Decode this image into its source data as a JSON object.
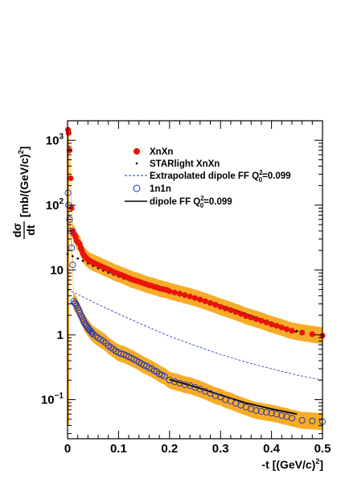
{
  "chart_data": {
    "type": "scatter",
    "x_axis": {
      "label_main": "-t [(GeV/c)",
      "label_sup": "2",
      "label_end": "]",
      "range": [
        0,
        0.5
      ],
      "ticks": [
        {
          "v": 0,
          "label": "0"
        },
        {
          "v": 0.1,
          "label": "0.1"
        },
        {
          "v": 0.2,
          "label": "0.2"
        },
        {
          "v": 0.3,
          "label": "0.3"
        },
        {
          "v": 0.4,
          "label": "0.4"
        },
        {
          "v": 0.5,
          "label": "0.5"
        }
      ]
    },
    "y_axis": {
      "scale": "log",
      "label_num": "dσ",
      "label_den": "dt",
      "label_units": "[mb/(GeV/c)",
      "label_units_sup": "2",
      "label_units_end": "]",
      "range": [
        0.025,
        2000
      ],
      "ticks": [
        {
          "v": 0.1,
          "base": "10",
          "exp": "−1"
        },
        {
          "v": 1,
          "label": "1"
        },
        {
          "v": 10,
          "label": "10"
        },
        {
          "v": 100,
          "base": "10",
          "exp": "2"
        },
        {
          "v": 1000,
          "base": "10",
          "exp": "3"
        }
      ]
    },
    "legend": {
      "placement": "top-right",
      "entries": [
        {
          "key": "xnxn",
          "text": "XnXn"
        },
        {
          "key": "starlight",
          "text": "STARlight XnXn"
        },
        {
          "key": "dipole_extrap",
          "text": "Extrapolated dipole FF Q",
          "sup": "2",
          "sub": "0",
          "tail": "=0.099"
        },
        {
          "key": "n1n1",
          "text": "1n1n"
        },
        {
          "key": "dipole",
          "text": "dipole FF  Q",
          "sup": "2",
          "sub": "0",
          "tail": "=0.099"
        }
      ]
    },
    "colors": {
      "xnxn": "#e8140c",
      "n1n1": "#1c2fb6",
      "band": "#f7a81c",
      "starlight": "#000000",
      "dipole": "#000000",
      "dipole_extrap": "#1c2fb6"
    },
    "series": [
      {
        "name": "XnXn",
        "points": [
          [
            0.001,
            1450
          ],
          [
            0.002,
            1300
          ],
          [
            0.004,
            700
          ],
          [
            0.006,
            260
          ],
          [
            0.008,
            90
          ],
          [
            0.01,
            40
          ],
          [
            0.012,
            36
          ],
          [
            0.014,
            35
          ],
          [
            0.016,
            32
          ],
          [
            0.018,
            28
          ],
          [
            0.02,
            27
          ],
          [
            0.022,
            26
          ],
          [
            0.024,
            25
          ],
          [
            0.026,
            22
          ],
          [
            0.028,
            20
          ],
          [
            0.03,
            18
          ],
          [
            0.032,
            17
          ],
          [
            0.034,
            16
          ],
          [
            0.036,
            15.5
          ],
          [
            0.038,
            15
          ],
          [
            0.04,
            14.5
          ],
          [
            0.042,
            14
          ],
          [
            0.044,
            13.8
          ],
          [
            0.046,
            13.5
          ],
          [
            0.048,
            13.2
          ],
          [
            0.05,
            13
          ],
          [
            0.055,
            12.5
          ],
          [
            0.06,
            12
          ],
          [
            0.065,
            11.5
          ],
          [
            0.07,
            11
          ],
          [
            0.075,
            10.6
          ],
          [
            0.08,
            10.2
          ],
          [
            0.085,
            9.8
          ],
          [
            0.09,
            9.3
          ],
          [
            0.095,
            9
          ],
          [
            0.1,
            8.7
          ],
          [
            0.105,
            8.4
          ],
          [
            0.11,
            8.1
          ],
          [
            0.115,
            7.8
          ],
          [
            0.12,
            7.5
          ],
          [
            0.125,
            7.2
          ],
          [
            0.13,
            7.0
          ],
          [
            0.135,
            6.8
          ],
          [
            0.14,
            6.6
          ],
          [
            0.145,
            6.4
          ],
          [
            0.15,
            6.2
          ],
          [
            0.155,
            6.0
          ],
          [
            0.16,
            5.8
          ],
          [
            0.165,
            5.7
          ],
          [
            0.17,
            5.5
          ],
          [
            0.175,
            5.4
          ],
          [
            0.18,
            5.2
          ],
          [
            0.185,
            5.1
          ],
          [
            0.19,
            5.0
          ],
          [
            0.195,
            4.9
          ],
          [
            0.2,
            4.7
          ],
          [
            0.21,
            4.5
          ],
          [
            0.22,
            4.3
          ],
          [
            0.23,
            4.1
          ],
          [
            0.24,
            3.9
          ],
          [
            0.25,
            3.7
          ],
          [
            0.26,
            3.5
          ],
          [
            0.27,
            3.3
          ],
          [
            0.28,
            3.1
          ],
          [
            0.29,
            2.9
          ],
          [
            0.3,
            2.7
          ],
          [
            0.31,
            2.55
          ],
          [
            0.32,
            2.4
          ],
          [
            0.33,
            2.25
          ],
          [
            0.34,
            2.1
          ],
          [
            0.35,
            1.95
          ],
          [
            0.36,
            1.85
          ],
          [
            0.37,
            1.75
          ],
          [
            0.38,
            1.65
          ],
          [
            0.39,
            1.55
          ],
          [
            0.4,
            1.45
          ],
          [
            0.41,
            1.38
          ],
          [
            0.42,
            1.3
          ],
          [
            0.43,
            1.22
          ],
          [
            0.44,
            1.15
          ],
          [
            0.46,
            1.08
          ],
          [
            0.48,
            1.02
          ],
          [
            0.5,
            0.97
          ]
        ]
      },
      {
        "name": "STARlight XnXn",
        "points": [
          [
            0.0,
            17.5
          ],
          [
            0.01,
            16.3
          ],
          [
            0.02,
            15.0
          ],
          [
            0.03,
            13.8
          ],
          [
            0.04,
            12.6
          ],
          [
            0.05,
            11.5
          ],
          [
            0.06,
            10.6
          ],
          [
            0.07,
            9.8
          ],
          [
            0.08,
            9.1
          ],
          [
            0.09,
            8.5
          ],
          [
            0.1,
            7.9
          ],
          [
            0.11,
            7.4
          ],
          [
            0.12,
            7.0
          ],
          [
            0.13,
            6.6
          ],
          [
            0.14,
            6.3
          ],
          [
            0.15,
            6.0
          ],
          [
            0.16,
            5.7
          ],
          [
            0.17,
            5.4
          ],
          [
            0.18,
            5.1
          ],
          [
            0.19,
            4.9
          ],
          [
            0.2,
            4.7
          ],
          [
            0.21,
            4.5
          ],
          [
            0.22,
            4.3
          ],
          [
            0.23,
            4.1
          ],
          [
            0.24,
            3.9
          ],
          [
            0.25,
            3.7
          ],
          [
            0.26,
            3.5
          ],
          [
            0.27,
            3.3
          ],
          [
            0.28,
            3.15
          ],
          [
            0.29,
            3.0
          ],
          [
            0.3,
            2.85
          ],
          [
            0.31,
            2.7
          ],
          [
            0.32,
            2.55
          ],
          [
            0.33,
            2.4
          ],
          [
            0.34,
            2.25
          ],
          [
            0.35,
            2.1
          ],
          [
            0.36,
            1.98
          ],
          [
            0.37,
            1.87
          ],
          [
            0.38,
            1.76
          ],
          [
            0.39,
            1.66
          ],
          [
            0.4,
            1.56
          ],
          [
            0.41,
            1.47
          ],
          [
            0.42,
            1.38
          ],
          [
            0.43,
            1.3
          ],
          [
            0.44,
            1.22
          ],
          [
            0.45,
            1.15
          ]
        ]
      },
      {
        "name": "1n1n",
        "points": [
          [
            0.001,
            155
          ],
          [
            0.002,
            100
          ],
          [
            0.004,
            60
          ],
          [
            0.006,
            40
          ],
          [
            0.008,
            22
          ],
          [
            0.01,
            12
          ],
          [
            0.012,
            3.3
          ],
          [
            0.014,
            3.1
          ],
          [
            0.016,
            3.0
          ],
          [
            0.018,
            2.8
          ],
          [
            0.02,
            2.6
          ],
          [
            0.022,
            2.4
          ],
          [
            0.024,
            2.2
          ],
          [
            0.026,
            2.0
          ],
          [
            0.028,
            1.9
          ],
          [
            0.03,
            1.75
          ],
          [
            0.032,
            1.6
          ],
          [
            0.034,
            1.5
          ],
          [
            0.036,
            1.42
          ],
          [
            0.038,
            1.35
          ],
          [
            0.04,
            1.28
          ],
          [
            0.042,
            1.22
          ],
          [
            0.044,
            1.17
          ],
          [
            0.046,
            1.12
          ],
          [
            0.048,
            1.07
          ],
          [
            0.05,
            1.03
          ],
          [
            0.055,
            0.96
          ],
          [
            0.06,
            0.9
          ],
          [
            0.065,
            0.85
          ],
          [
            0.07,
            0.8
          ],
          [
            0.075,
            0.75
          ],
          [
            0.08,
            0.68
          ],
          [
            0.085,
            0.64
          ],
          [
            0.09,
            0.6
          ],
          [
            0.095,
            0.56
          ],
          [
            0.1,
            0.53
          ],
          [
            0.105,
            0.51
          ],
          [
            0.11,
            0.5
          ],
          [
            0.115,
            0.48
          ],
          [
            0.12,
            0.46
          ],
          [
            0.125,
            0.44
          ],
          [
            0.13,
            0.42
          ],
          [
            0.135,
            0.4
          ],
          [
            0.14,
            0.38
          ],
          [
            0.145,
            0.36
          ],
          [
            0.15,
            0.34
          ],
          [
            0.155,
            0.33
          ],
          [
            0.16,
            0.31
          ],
          [
            0.165,
            0.3
          ],
          [
            0.17,
            0.28
          ],
          [
            0.175,
            0.27
          ],
          [
            0.18,
            0.25
          ],
          [
            0.185,
            0.24
          ],
          [
            0.19,
            0.23
          ],
          [
            0.2,
            0.2
          ],
          [
            0.21,
            0.19
          ],
          [
            0.22,
            0.18
          ],
          [
            0.23,
            0.17
          ],
          [
            0.24,
            0.165
          ],
          [
            0.25,
            0.155
          ],
          [
            0.26,
            0.145
          ],
          [
            0.27,
            0.135
          ],
          [
            0.28,
            0.125
          ],
          [
            0.29,
            0.115
          ],
          [
            0.3,
            0.11
          ],
          [
            0.31,
            0.1
          ],
          [
            0.32,
            0.095
          ],
          [
            0.33,
            0.088
          ],
          [
            0.34,
            0.082
          ],
          [
            0.35,
            0.077
          ],
          [
            0.36,
            0.072
          ],
          [
            0.37,
            0.068
          ],
          [
            0.38,
            0.066
          ],
          [
            0.39,
            0.064
          ],
          [
            0.4,
            0.062
          ],
          [
            0.41,
            0.06
          ],
          [
            0.42,
            0.057
          ],
          [
            0.43,
            0.055
          ],
          [
            0.44,
            0.052
          ],
          [
            0.46,
            0.048
          ],
          [
            0.48,
            0.047
          ],
          [
            0.5,
            0.046
          ]
        ]
      },
      {
        "name": "dipole FF  Q0^2=0.099",
        "style": "solid",
        "points": [
          [
            0.2,
            0.205
          ],
          [
            0.25,
            0.158
          ],
          [
            0.3,
            0.118
          ],
          [
            0.35,
            0.089
          ],
          [
            0.4,
            0.072
          ],
          [
            0.45,
            0.06
          ]
        ]
      },
      {
        "name": "dipole FF  Q0^2=0.099 (XnXn)",
        "style": "solid",
        "points": [
          [
            0.2,
            4.8
          ],
          [
            0.25,
            3.8
          ],
          [
            0.3,
            2.85
          ],
          [
            0.35,
            2.1
          ],
          [
            0.4,
            1.52
          ],
          [
            0.45,
            1.1
          ]
        ]
      },
      {
        "name": "Extrapolated dipole FF Q0^2=0.099",
        "style": "dashed",
        "points": [
          [
            0.0,
            5.0
          ],
          [
            0.02,
            4.2
          ],
          [
            0.05,
            3.2
          ],
          [
            0.1,
            2.1
          ],
          [
            0.15,
            1.4
          ],
          [
            0.2,
            0.95
          ],
          [
            0.25,
            0.68
          ],
          [
            0.3,
            0.5
          ],
          [
            0.35,
            0.38
          ],
          [
            0.4,
            0.3
          ],
          [
            0.45,
            0.24
          ],
          [
            0.5,
            0.2
          ]
        ]
      }
    ]
  }
}
